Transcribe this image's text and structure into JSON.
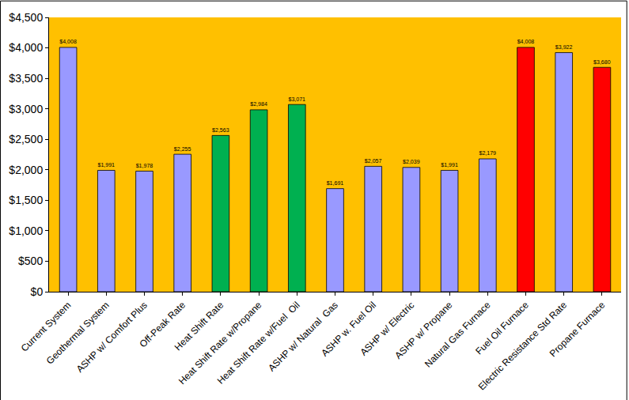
{
  "chart_data": {
    "type": "bar",
    "categories": [
      "Current System",
      "Geothermal System",
      "ASHP w/ Comfort Plus",
      "Off-Peak Rate",
      "Heat Shift Rate",
      "Heat Shift Rate w/Propane",
      "Heat Shift Rate w/Fuel  Oil",
      "ASHP w/ Natural  Gas",
      "ASHP w. Fuel Oil",
      "ASHP w/ Electric",
      "ASHP w/ Propane",
      "Natural Gas Furnace",
      "Fuel Oil Furnace",
      "Electric Resistance Std Rate",
      "Propane Furnace"
    ],
    "values": [
      4008,
      1991,
      1978,
      2255,
      2563,
      2984,
      3071,
      1691,
      2057,
      2039,
      1991,
      2179,
      4008,
      3922,
      3680
    ],
    "value_labels": [
      "$4,008",
      "$1,991",
      "$1,978",
      "$2,255",
      "$2,563",
      "$2,984",
      "$3,071",
      "$1,691",
      "$2,057",
      "$2,039",
      "$1,991",
      "$2,179",
      "$4,008",
      "$3,922",
      "$3,680"
    ],
    "colors": [
      "#9999ff",
      "#9999ff",
      "#9999ff",
      "#9999ff",
      "#00b050",
      "#00b050",
      "#00b050",
      "#9999ff",
      "#9999ff",
      "#9999ff",
      "#9999ff",
      "#9999ff",
      "#ff0000",
      "#9999ff",
      "#ff0000"
    ],
    "data_labels": true,
    "ylim": [
      0,
      4500
    ],
    "yticks": [
      {
        "value": 0,
        "label": "$0"
      },
      {
        "value": 500,
        "label": "$500"
      },
      {
        "value": 1000,
        "label": "$1,000"
      },
      {
        "value": 1500,
        "label": "$1,500"
      },
      {
        "value": 2000,
        "label": "$2,000"
      },
      {
        "value": 2500,
        "label": "$2,500"
      },
      {
        "value": 3000,
        "label": "$3,000"
      },
      {
        "value": 3500,
        "label": "$3,500"
      },
      {
        "value": 4000,
        "label": "$4,000"
      },
      {
        "value": 4500,
        "label": "$4,500"
      }
    ],
    "grid": false
  }
}
